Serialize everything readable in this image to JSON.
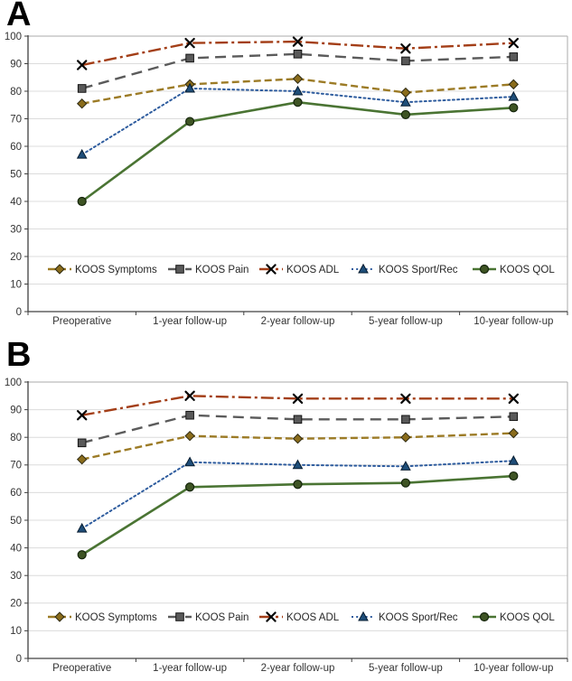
{
  "chart_data": [
    {
      "type": "line",
      "panel_label": "A",
      "categories": [
        "Preoperative",
        "1-year follow-up",
        "2-year follow-up",
        "5-year follow-up",
        "10-year follow-up"
      ],
      "ylim": [
        0,
        100
      ],
      "ytick_step": 10,
      "grid": true,
      "legend_position": "bottom-inside",
      "series": [
        {
          "name": "KOOS Symptoms",
          "values": [
            75.5,
            82.5,
            84.5,
            79.5,
            82.5
          ],
          "color": "#9C7B26",
          "line_style": "dashed",
          "marker": "diamond",
          "marker_color": "#8A6C1C"
        },
        {
          "name": "KOOS Pain",
          "values": [
            81,
            92,
            93.5,
            91,
            92.5
          ],
          "color": "#5B5B5B",
          "line_style": "long-dash",
          "marker": "square",
          "marker_color": "#595959"
        },
        {
          "name": "KOOS ADL",
          "values": [
            89.5,
            97.5,
            98,
            95.5,
            97.5
          ],
          "color": "#A33E17",
          "line_style": "dash-dot",
          "marker": "x",
          "marker_color": "#000000"
        },
        {
          "name": "KOOS Sport/Rec",
          "values": [
            57,
            81,
            80,
            76,
            78
          ],
          "color": "#2E5C9E",
          "line_style": "dotted",
          "marker": "triangle",
          "marker_color": "#1F4E79"
        },
        {
          "name": "KOOS QOL",
          "values": [
            40,
            69,
            76,
            71.5,
            74
          ],
          "color": "#4A7433",
          "line_style": "solid",
          "marker": "circle",
          "marker_color": "#3E5424"
        }
      ]
    },
    {
      "type": "line",
      "panel_label": "B",
      "categories": [
        "Preoperative",
        "1-year follow-up",
        "2-year follow-up",
        "5-year follow-up",
        "10-year follow-up"
      ],
      "ylim": [
        0,
        100
      ],
      "ytick_step": 10,
      "grid": true,
      "legend_position": "bottom-inside",
      "series": [
        {
          "name": "KOOS Symptoms",
          "values": [
            72,
            80.5,
            79.5,
            80,
            81.5
          ],
          "color": "#9C7B26",
          "line_style": "dashed",
          "marker": "diamond",
          "marker_color": "#8A6C1C"
        },
        {
          "name": "KOOS Pain",
          "values": [
            78,
            88,
            86.5,
            86.5,
            87.5
          ],
          "color": "#5B5B5B",
          "line_style": "long-dash",
          "marker": "square",
          "marker_color": "#595959"
        },
        {
          "name": "KOOS ADL",
          "values": [
            88,
            95,
            94,
            94,
            94
          ],
          "color": "#A33E17",
          "line_style": "dash-dot",
          "marker": "x",
          "marker_color": "#000000"
        },
        {
          "name": "KOOS Sport/Rec",
          "values": [
            47,
            71,
            70,
            69.5,
            71.5
          ],
          "color": "#2E5C9E",
          "line_style": "dotted",
          "marker": "triangle",
          "marker_color": "#1F4E79"
        },
        {
          "name": "KOOS QOL",
          "values": [
            37.5,
            62,
            63,
            63.5,
            66
          ],
          "color": "#4A7433",
          "line_style": "solid",
          "marker": "circle",
          "marker_color": "#3E5424"
        }
      ]
    }
  ],
  "style_colors": {
    "gridline": "#DCDCDC",
    "axis": "#404040",
    "plot_border": "#ABABAB",
    "tick_text": "#333333",
    "legend_text": "#262626"
  }
}
